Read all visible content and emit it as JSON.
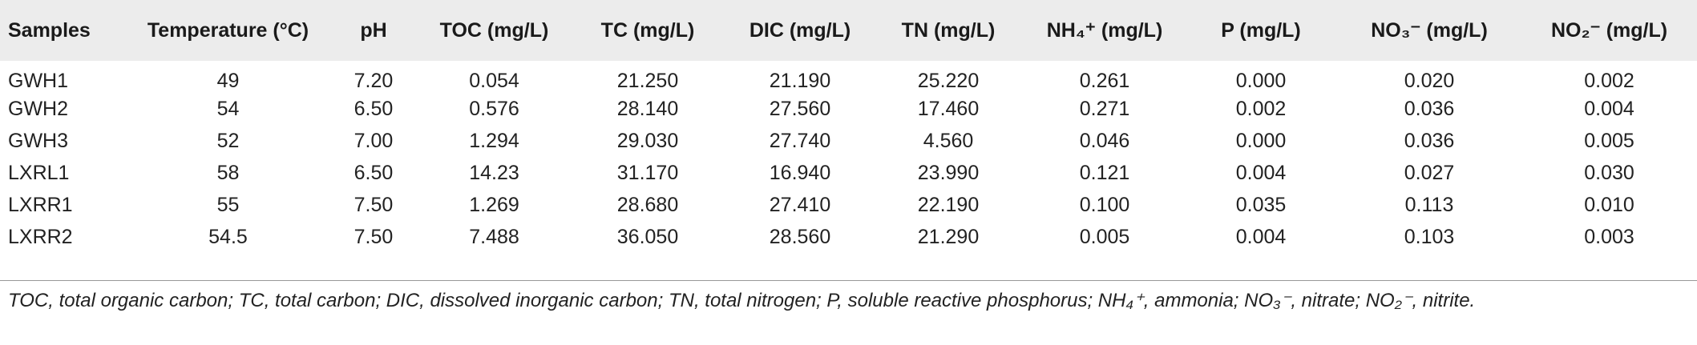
{
  "table": {
    "columns": [
      "Samples",
      "Temperature (°C)",
      "pH",
      "TOC (mg/L)",
      "TC (mg/L)",
      "DIC (mg/L)",
      "TN (mg/L)",
      "NH₄⁺ (mg/L)",
      "P (mg/L)",
      "NO₃⁻ (mg/L)",
      "NO₂⁻ (mg/L)"
    ],
    "rows": [
      [
        "GWH1",
        "49",
        "7.20",
        "0.054",
        "21.250",
        "21.190",
        "25.220",
        "0.261",
        "0.000",
        "0.020",
        "0.002"
      ],
      [
        "GWH2",
        "54",
        "6.50",
        "0.576",
        "28.140",
        "27.560",
        "17.460",
        "0.271",
        "0.002",
        "0.036",
        "0.004"
      ],
      [
        "GWH3",
        "52",
        "7.00",
        "1.294",
        "29.030",
        "27.740",
        "4.560",
        "0.046",
        "0.000",
        "0.036",
        "0.005"
      ],
      [
        "LXRL1",
        "58",
        "6.50",
        "14.23",
        "31.170",
        "16.940",
        "23.990",
        "0.121",
        "0.004",
        "0.027",
        "0.030"
      ],
      [
        "LXRR1",
        "55",
        "7.50",
        "1.269",
        "28.680",
        "27.410",
        "22.190",
        "0.100",
        "0.035",
        "0.113",
        "0.010"
      ],
      [
        "LXRR2",
        "54.5",
        "7.50",
        "7.488",
        "36.050",
        "28.560",
        "21.290",
        "0.005",
        "0.004",
        "0.103",
        "0.003"
      ]
    ]
  },
  "footnote": "TOC, total organic carbon; TC, total carbon; DIC, dissolved inorganic carbon; TN, total nitrogen; P, soluble reactive phosphorus; NH₄⁺, ammonia; NO₃⁻, nitrate; NO₂⁻, nitrite."
}
